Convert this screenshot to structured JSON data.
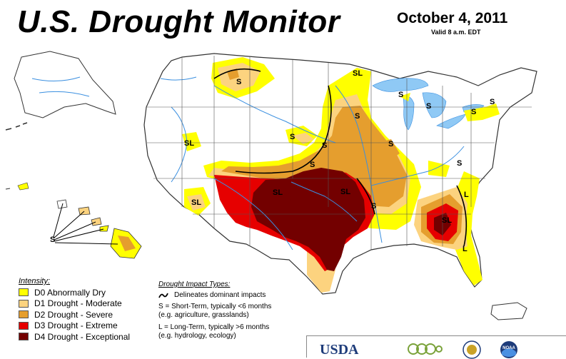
{
  "header": {
    "title": "U.S. Drought Monitor",
    "date": "October 4, 2011",
    "valid": "Valid 8 a.m. EDT"
  },
  "colors": {
    "d0": "#ffff00",
    "d1": "#fcd37f",
    "d2": "#e59e2e",
    "d3": "#e60000",
    "d4": "#730000",
    "water": "#8fc9f5",
    "river": "#3a8fe0"
  },
  "legend": {
    "title": "Intensity:",
    "items": [
      {
        "code": "d0",
        "label": "D0 Abnormally Dry"
      },
      {
        "code": "d1",
        "label": "D1 Drought - Moderate"
      },
      {
        "code": "d2",
        "label": "D2 Drought - Severe"
      },
      {
        "code": "d3",
        "label": "D3 Drought - Extreme"
      },
      {
        "code": "d4",
        "label": "D4 Drought - Exceptional"
      }
    ]
  },
  "impacts": {
    "title": "Drought Impact Types:",
    "line_label": "Delineates dominant impacts",
    "short_term": "S = Short-Term, typically <6 months",
    "short_term_examples": "(e.g. agriculture, grasslands)",
    "long_term": "L = Long-Term, typically >6 months",
    "long_term_examples": "(e.g. hydrology, ecology)"
  },
  "map_labels": {
    "s": "S",
    "sl": "SL",
    "l": "L"
  },
  "logos": {
    "usda": "USDA",
    "noaa": "NOAA"
  }
}
